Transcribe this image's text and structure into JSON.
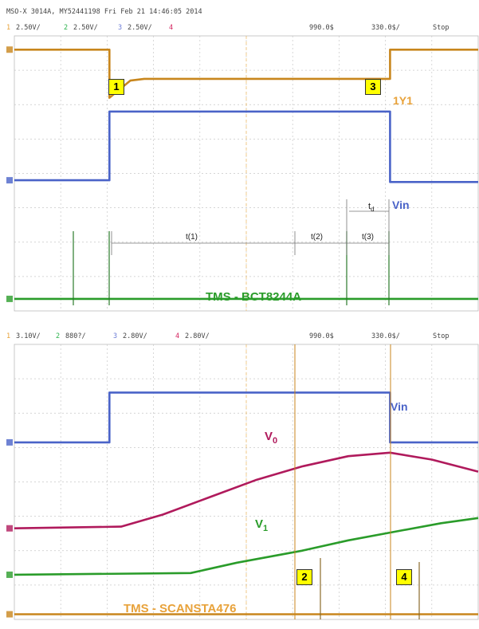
{
  "header": {
    "instrument": "MSO-X 3014A, MY52441198 Fri Feb 21 14:46:05 2014"
  },
  "top_panel": {
    "channels": [
      {
        "num": "1",
        "scale": "2.50V/",
        "color": "#e8a23a"
      },
      {
        "num": "2",
        "scale": "2.50V/",
        "color": "#2bb24c"
      },
      {
        "num": "3",
        "scale": "2.50V/",
        "color": "#6b7bd6"
      },
      {
        "num": "4",
        "scale": "",
        "color": "#d4245f"
      }
    ],
    "delay": "990.0$",
    "timebase": "330.0$/",
    "run_state": "Stop",
    "title": "TMS - BCT8244A",
    "labels": {
      "y1": "1Y1",
      "vin": "Vin",
      "t1": "t(1)",
      "t2": "t(2)",
      "t3": "t(3)",
      "td_base": "t",
      "td_sub": "d"
    },
    "markers": [
      "1",
      "3"
    ]
  },
  "bottom_panel": {
    "channels": [
      {
        "num": "1",
        "scale": "3.10V/",
        "color": "#e8a23a"
      },
      {
        "num": "2",
        "scale": "880?/",
        "color": "#2bb24c"
      },
      {
        "num": "3",
        "scale": "2.80V/",
        "color": "#6b7bd6"
      },
      {
        "num": "4",
        "scale": "2.80V/",
        "color": "#d4245f"
      }
    ],
    "delay": "990.0$",
    "timebase": "330.0$/",
    "run_state": "Stop",
    "title": "TMS - SCANSTA476",
    "labels": {
      "vin": "Vin",
      "v0_base": "V",
      "v0_sub": "0",
      "v1_base": "V",
      "v1_sub": "1"
    },
    "markers": [
      "2",
      "4"
    ]
  },
  "chart_data": [
    {
      "type": "line",
      "title": "TMS - BCT8244A",
      "x_units": "divisions",
      "xlim": [
        0,
        10
      ],
      "ylim": [
        0,
        8
      ],
      "series": [
        {
          "name": "1Y1",
          "color": "#c8861d",
          "points": [
            [
              0,
              7.6
            ],
            [
              2.05,
              7.6
            ],
            [
              2.05,
              6.2
            ],
            [
              2.5,
              6.7
            ],
            [
              2.8,
              6.75
            ],
            [
              8.1,
              6.75
            ],
            [
              8.1,
              7.6
            ],
            [
              10,
              7.6
            ]
          ]
        },
        {
          "name": "Vin",
          "color": "#4a63c8",
          "points": [
            [
              0,
              3.8
            ],
            [
              2.05,
              3.8
            ],
            [
              2.05,
              5.8
            ],
            [
              8.1,
              5.8
            ],
            [
              8.1,
              3.75
            ],
            [
              10,
              3.75
            ]
          ]
        },
        {
          "name": "",
          "color": "#2a9c2a",
          "points": [
            [
              0,
              0.35
            ],
            [
              10,
              0.35
            ]
          ]
        }
      ]
    },
    {
      "type": "line",
      "title": "TMS - SCANSTA476",
      "x_units": "divisions",
      "xlim": [
        0,
        10
      ],
      "ylim": [
        0,
        8
      ],
      "series": [
        {
          "name": "Vin",
          "color": "#4a63c8",
          "points": [
            [
              0,
              5.15
            ],
            [
              2.05,
              5.15
            ],
            [
              2.05,
              6.6
            ],
            [
              8.1,
              6.6
            ],
            [
              8.1,
              5.15
            ],
            [
              10,
              5.15
            ]
          ]
        },
        {
          "name": "V0",
          "color": "#b01a5c",
          "points": [
            [
              0,
              2.65
            ],
            [
              2.3,
              2.7
            ],
            [
              3.2,
              3.05
            ],
            [
              4.2,
              3.55
            ],
            [
              5.2,
              4.05
            ],
            [
              6.2,
              4.45
            ],
            [
              7.2,
              4.75
            ],
            [
              8.1,
              4.85
            ],
            [
              9,
              4.65
            ],
            [
              10,
              4.3
            ]
          ]
        },
        {
          "name": "V1",
          "color": "#2a9c2a",
          "points": [
            [
              0,
              1.3
            ],
            [
              3.8,
              1.35
            ],
            [
              4.8,
              1.65
            ],
            [
              6.2,
              2.0
            ],
            [
              7.2,
              2.3
            ],
            [
              8.2,
              2.55
            ],
            [
              9.2,
              2.8
            ],
            [
              10,
              2.95
            ]
          ]
        },
        {
          "name": "",
          "color": "#c8861d",
          "points": [
            [
              0,
              0.15
            ],
            [
              10,
              0.15
            ]
          ]
        }
      ]
    }
  ]
}
